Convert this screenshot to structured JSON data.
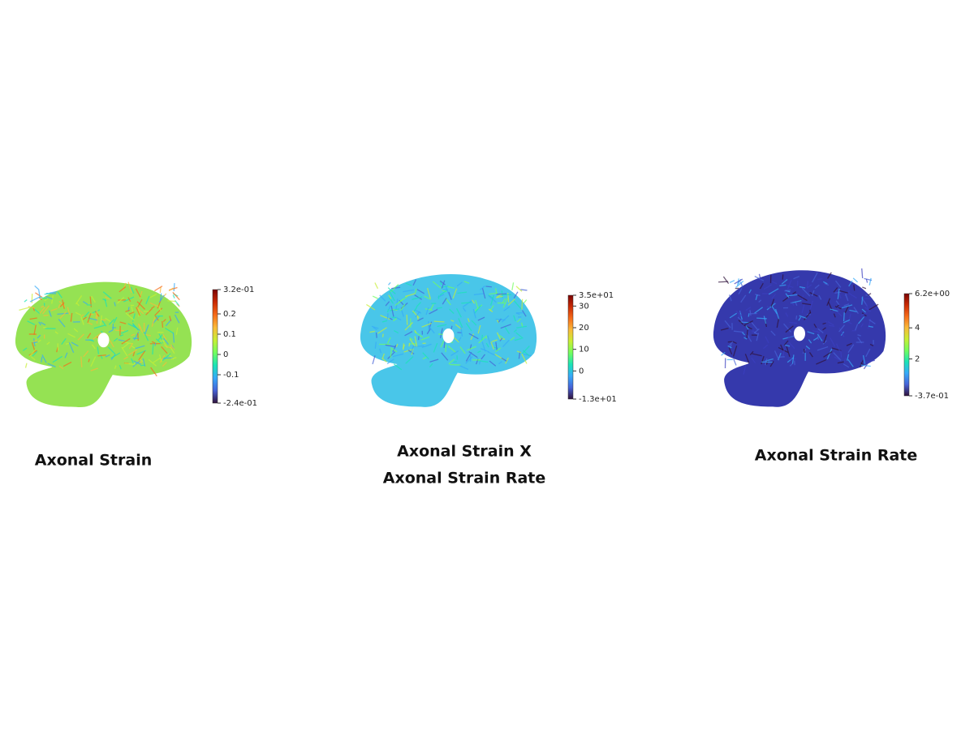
{
  "colormap": [
    "#30123b",
    "#4662d7",
    "#36aaf9",
    "#1ae4b6",
    "#72fe5e",
    "#c8ef34",
    "#faba39",
    "#f66b19",
    "#ca2a04",
    "#7a0403"
  ],
  "panels": [
    {
      "title": [
        "Axonal Strain"
      ],
      "colorbar": {
        "range": [
          -0.24,
          0.32
        ],
        "ticks": [
          {
            "value": 0.32,
            "label": "3.2e-01"
          },
          0.2,
          0.1,
          0,
          -0.1,
          {
            "value": -0.24,
            "label": "-2.4e-01"
          }
        ]
      }
    },
    {
      "title": [
        "Axonal Strain X",
        "Axonal Strain Rate"
      ],
      "colorbar": {
        "range": [
          -13,
          35
        ],
        "ticks": [
          {
            "value": 35,
            "label": "3.5e+01"
          },
          30,
          20,
          10,
          0,
          {
            "value": -13,
            "label": "-1.3e+01"
          }
        ]
      }
    },
    {
      "title": [
        "Axonal Strain Rate"
      ],
      "colorbar": {
        "range": [
          -0.37,
          6.2
        ],
        "ticks": [
          {
            "value": 6.2,
            "label": "6.2e+00"
          },
          4,
          2,
          {
            "value": -0.37,
            "label": "-3.7e-01"
          }
        ]
      }
    }
  ]
}
